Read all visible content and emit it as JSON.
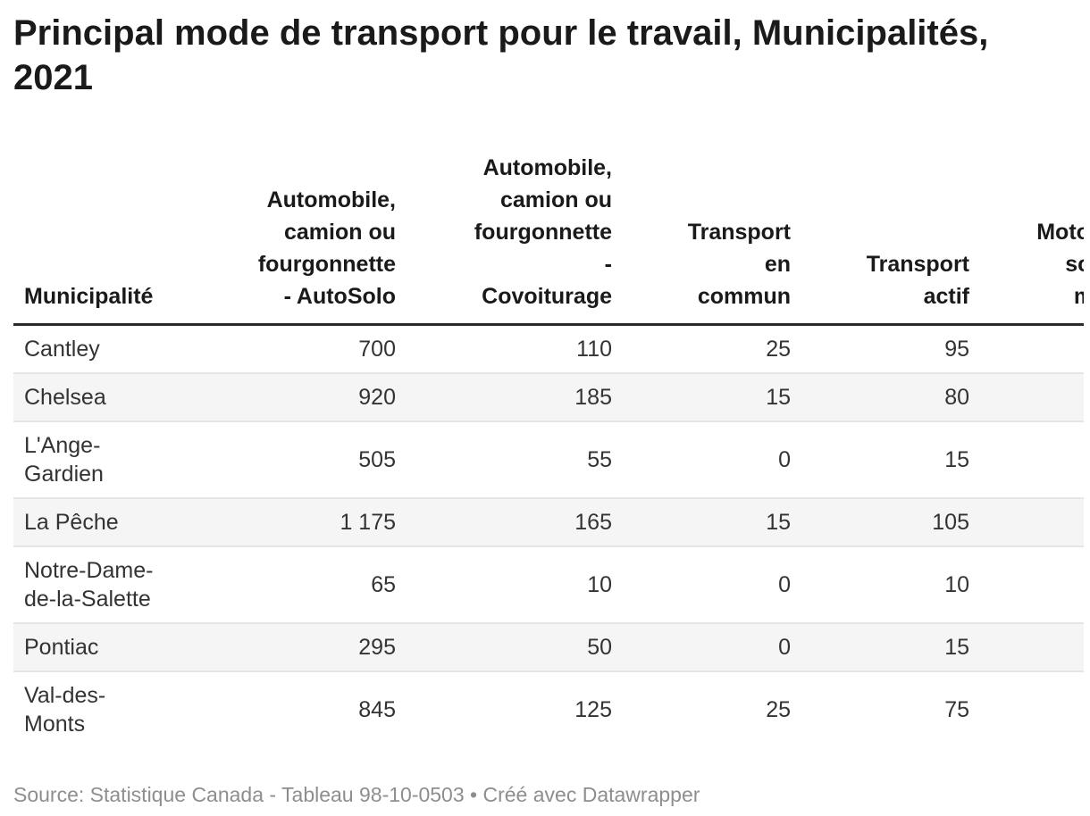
{
  "title": "Principal mode de transport pour le travail, Municipalités, 2021",
  "table": {
    "columns": [
      {
        "label": "Municipalité"
      },
      {
        "label": "Automobile, camion ou fourgonnette - AutoSolo"
      },
      {
        "label": "Automobile, camion ou fourgonnette - Covoiturage"
      },
      {
        "label": "Transport en commun"
      },
      {
        "label": "Transport actif"
      },
      {
        "label": "Motocyclette, scooter ou mobylette"
      }
    ],
    "rows": [
      {
        "municipality": "Cantley",
        "values": [
          "700",
          "110",
          "25",
          "95",
          ""
        ]
      },
      {
        "municipality": "Chelsea",
        "values": [
          "920",
          "185",
          "15",
          "80",
          ""
        ]
      },
      {
        "municipality": "L'Ange-Gardien",
        "values": [
          "505",
          "55",
          "0",
          "15",
          ""
        ]
      },
      {
        "municipality": "La Pêche",
        "values": [
          "1 175",
          "165",
          "15",
          "105",
          ""
        ]
      },
      {
        "municipality": "Notre-Dame-de-la-Salette",
        "values": [
          "65",
          "10",
          "0",
          "10",
          ""
        ]
      },
      {
        "municipality": "Pontiac",
        "values": [
          "295",
          "50",
          "0",
          "15",
          ""
        ]
      },
      {
        "municipality": "Val-des-Monts",
        "values": [
          "845",
          "125",
          "25",
          "75",
          ""
        ]
      }
    ]
  },
  "footer": {
    "source": "Source: Statistique Canada - Tableau 98-10-0503",
    "separator": " • ",
    "byline": "Créé avec Datawrapper"
  },
  "colors": {
    "title_text": "#1a1a1a",
    "body_text": "#333333",
    "zebra_stripe": "#f5f5f5",
    "row_separator": "#e6e6e6",
    "header_rule": "#2b2b2b",
    "footer_text": "#8e8e8e",
    "background": "#ffffff"
  },
  "chart_data": {
    "type": "table",
    "title": "Principal mode de transport pour le travail, Municipalités, 2021",
    "columns": [
      "Municipalité",
      "Automobile, camion ou fourgonnette - AutoSolo",
      "Automobile, camion ou fourgonnette - Covoiturage",
      "Transport en commun",
      "Transport actif",
      "Motocyclette, scooter ou mobylette"
    ],
    "rows": [
      {
        "municipality": "Cantley",
        "autosolo": 700,
        "covoiturage": 110,
        "transport_en_commun": 25,
        "transport_actif": 95,
        "moto_scooter": null
      },
      {
        "municipality": "Chelsea",
        "autosolo": 920,
        "covoiturage": 185,
        "transport_en_commun": 15,
        "transport_actif": 80,
        "moto_scooter": null
      },
      {
        "municipality": "L'Ange-Gardien",
        "autosolo": 505,
        "covoiturage": 55,
        "transport_en_commun": 0,
        "transport_actif": 15,
        "moto_scooter": null
      },
      {
        "municipality": "La Pêche",
        "autosolo": 1175,
        "covoiturage": 165,
        "transport_en_commun": 15,
        "transport_actif": 105,
        "moto_scooter": null
      },
      {
        "municipality": "Notre-Dame-de-la-Salette",
        "autosolo": 65,
        "covoiturage": 10,
        "transport_en_commun": 0,
        "transport_actif": 10,
        "moto_scooter": null
      },
      {
        "municipality": "Pontiac",
        "autosolo": 295,
        "covoiturage": 50,
        "transport_en_commun": 0,
        "transport_actif": 15,
        "moto_scooter": null
      },
      {
        "municipality": "Val-des-Monts",
        "autosolo": 845,
        "covoiturage": 125,
        "transport_en_commun": 25,
        "transport_actif": 75,
        "moto_scooter": null
      }
    ],
    "notes": "Sixth column is clipped by the right edge of the viewport; its values are not visible.",
    "source": "Statistique Canada - Tableau 98-10-0503"
  }
}
